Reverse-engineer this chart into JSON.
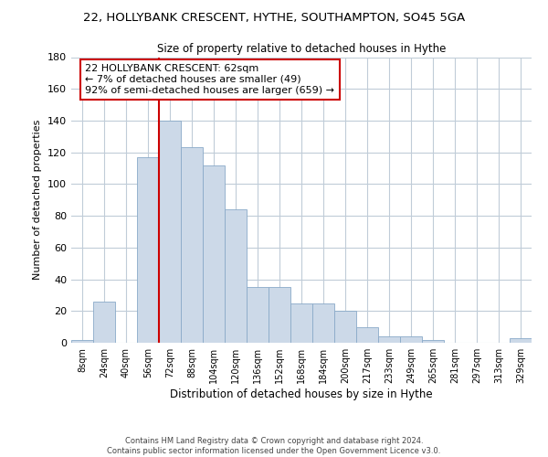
{
  "title_line1": "22, HOLLYBANK CRESCENT, HYTHE, SOUTHAMPTON, SO45 5GA",
  "title_line2": "Size of property relative to detached houses in Hythe",
  "xlabel": "Distribution of detached houses by size in Hythe",
  "ylabel": "Number of detached properties",
  "footer_line1": "Contains HM Land Registry data © Crown copyright and database right 2024.",
  "footer_line2": "Contains public sector information licensed under the Open Government Licence v3.0.",
  "bin_labels": [
    "8sqm",
    "24sqm",
    "40sqm",
    "56sqm",
    "72sqm",
    "88sqm",
    "104sqm",
    "120sqm",
    "136sqm",
    "152sqm",
    "168sqm",
    "184sqm",
    "200sqm",
    "217sqm",
    "233sqm",
    "249sqm",
    "265sqm",
    "281sqm",
    "297sqm",
    "313sqm",
    "329sqm"
  ],
  "bar_heights": [
    2,
    26,
    0,
    117,
    140,
    123,
    112,
    84,
    35,
    35,
    25,
    25,
    20,
    10,
    4,
    4,
    2,
    0,
    0,
    0,
    3
  ],
  "bar_color": "#ccd9e8",
  "bar_edgecolor": "#8aaac8",
  "ylim": [
    0,
    180
  ],
  "yticks": [
    0,
    20,
    40,
    60,
    80,
    100,
    120,
    140,
    160,
    180
  ],
  "property_line_bin_index": 3.5,
  "annotation_title": "22 HOLLYBANK CRESCENT: 62sqm",
  "annotation_line2": "← 7% of detached houses are smaller (49)",
  "annotation_line3": "92% of semi-detached houses are larger (659) →",
  "annotation_box_color": "#ffffff",
  "annotation_box_edgecolor": "#cc0000",
  "vline_color": "#cc0000",
  "background_color": "#ffffff",
  "grid_color": "#c0ccd8"
}
